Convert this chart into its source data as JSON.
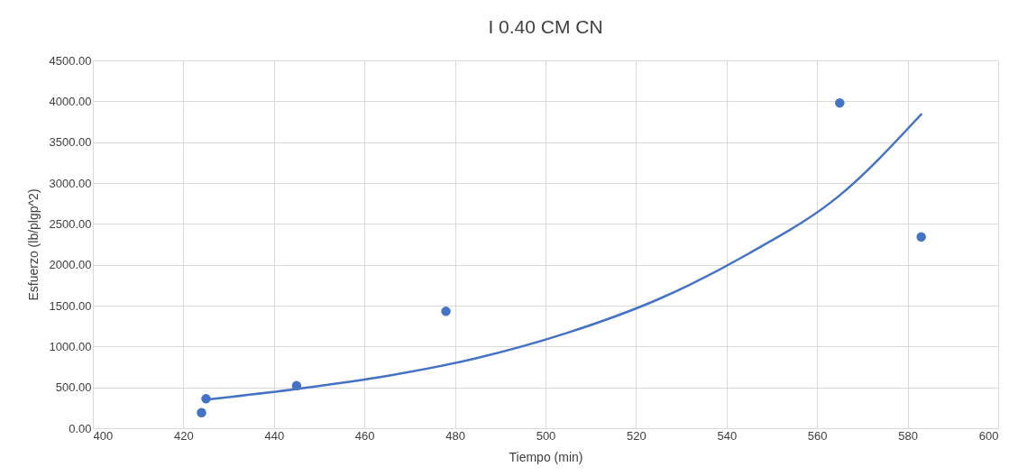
{
  "chart_data": {
    "type": "scatter",
    "title": "I 0.40 CM CN",
    "xlabel": "Tiempo (min)",
    "ylabel": "Esfuerzo (lb/plgp^2)",
    "xlim": [
      400,
      600
    ],
    "xticks": [
      400,
      420,
      440,
      460,
      480,
      500,
      520,
      540,
      560,
      580,
      600
    ],
    "ylim": [
      0,
      4500
    ],
    "yticks": [
      {
        "value": 0,
        "label": "0.00"
      },
      {
        "value": 500,
        "label": "500.00"
      },
      {
        "value": 1000,
        "label": "1000.00"
      },
      {
        "value": 1500,
        "label": "1500.00"
      },
      {
        "value": 2000,
        "label": "2000.00"
      },
      {
        "value": 2500,
        "label": "2500.00"
      },
      {
        "value": 3000,
        "label": "3000.00"
      },
      {
        "value": 3500,
        "label": "3500.00"
      },
      {
        "value": 4000,
        "label": "4000.00"
      },
      {
        "value": 4500,
        "label": "4500.00"
      }
    ],
    "grid": true,
    "marker": "circle",
    "series": [
      {
        "type": "scatter",
        "color": "#4472c4",
        "x": [
          424,
          425,
          445,
          478,
          565,
          583
        ],
        "values": [
          190,
          360,
          520,
          1430,
          3980,
          2340
        ]
      },
      {
        "type": "line",
        "color": "#4472c4",
        "line_style": "solid",
        "marker": "none",
        "x": [
          425,
          445,
          465,
          485,
          505,
          525,
          545,
          565,
          583
        ],
        "values": [
          350,
          480,
          640,
          860,
          1170,
          1580,
          2140,
          2850,
          3840
        ]
      }
    ]
  }
}
